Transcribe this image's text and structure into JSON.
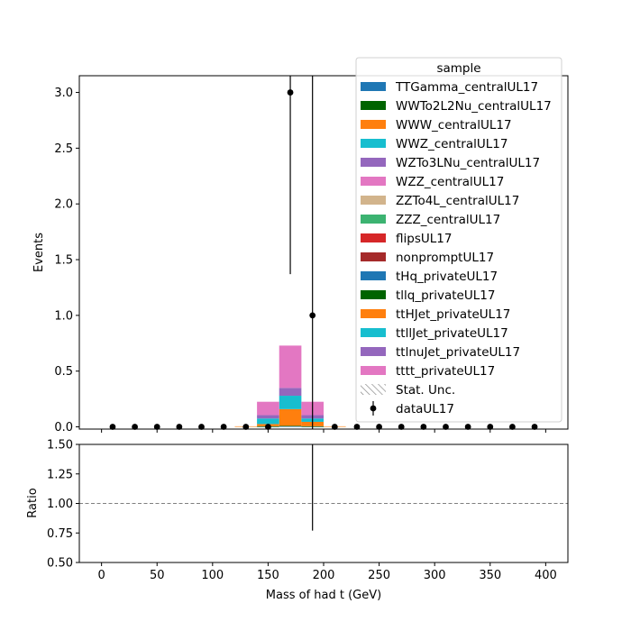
{
  "chart_data": {
    "type": "bar",
    "stacked": true,
    "x_edges": [
      0,
      20,
      40,
      60,
      80,
      100,
      120,
      140,
      160,
      180,
      200,
      220,
      240,
      260,
      280,
      300,
      320,
      340,
      360,
      380,
      400
    ],
    "xlabel": "Mass of had t (GeV)",
    "ylabel": "Events",
    "xlim": [
      -20,
      420
    ],
    "ylim": [
      -0.02,
      3.15
    ],
    "y_ticks": [
      "0.0",
      "0.5",
      "1.0",
      "1.5",
      "2.0",
      "2.5",
      "3.0"
    ],
    "x_ticks": [
      "0",
      "50",
      "100",
      "150",
      "200",
      "250",
      "300",
      "350",
      "400"
    ],
    "series": [
      {
        "name": "TTGamma_centralUL17",
        "color": "#1f77b4",
        "values": [
          0,
          0,
          0,
          0,
          0,
          0,
          0,
          0,
          0,
          0,
          0,
          0,
          0,
          0,
          0,
          0,
          0,
          0,
          0,
          0
        ]
      },
      {
        "name": "WWTo2L2Nu_centralUL17",
        "color": "#006400",
        "values": [
          0,
          0,
          0,
          0,
          0,
          0,
          0,
          0,
          0,
          0,
          0,
          0,
          0,
          0,
          0,
          0,
          0,
          0,
          0,
          0
        ]
      },
      {
        "name": "WWW_centralUL17",
        "color": "#ff7f0e",
        "values": [
          0,
          0,
          0,
          0,
          0,
          0,
          0,
          0,
          0,
          0,
          0,
          0,
          0,
          0,
          0,
          0,
          0,
          0,
          0,
          0
        ]
      },
      {
        "name": "WWZ_centralUL17",
        "color": "#17becf",
        "values": [
          0,
          0,
          0,
          0,
          0,
          0,
          0,
          0,
          0,
          0,
          0,
          0,
          0,
          0,
          0,
          0,
          0,
          0,
          0,
          0
        ]
      },
      {
        "name": "WZTo3LNu_centralUL17",
        "color": "#9467bd",
        "values": [
          0,
          0,
          0,
          0,
          0,
          0,
          0,
          0,
          0,
          0,
          0,
          0,
          0,
          0,
          0,
          0,
          0,
          0,
          0,
          0
        ]
      },
      {
        "name": "WZZ_centralUL17",
        "color": "#e377c2",
        "values": [
          0,
          0,
          0,
          0,
          0,
          0,
          0,
          0,
          0,
          0,
          0,
          0,
          0,
          0,
          0,
          0,
          0,
          0,
          0,
          0
        ]
      },
      {
        "name": "ZZTo4L_centralUL17",
        "color": "#d2b48c",
        "values": [
          0,
          0,
          0,
          0,
          0,
          0,
          0,
          0,
          0,
          0,
          0,
          0,
          0,
          0,
          0,
          0,
          0,
          0,
          0,
          0
        ]
      },
      {
        "name": "ZZZ_centralUL17",
        "color": "#3cb371",
        "values": [
          0,
          0,
          0,
          0,
          0,
          0,
          0,
          0,
          0,
          0,
          0,
          0,
          0,
          0,
          0,
          0,
          0,
          0,
          0,
          0
        ]
      },
      {
        "name": "flipsUL17",
        "color": "#d62728",
        "values": [
          0,
          0,
          0,
          0,
          0,
          0,
          0,
          0,
          0,
          0,
          0,
          0,
          0,
          0,
          0,
          0,
          0,
          0,
          0,
          0
        ]
      },
      {
        "name": "nonpromptUL17",
        "color": "#a52a2a",
        "values": [
          0,
          0,
          0,
          0,
          0,
          0,
          0,
          0,
          0,
          0,
          0,
          0,
          0,
          0,
          0,
          0,
          0,
          0,
          0,
          0
        ]
      },
      {
        "name": "tHq_privateUL17",
        "color": "#1f77b4",
        "values": [
          0,
          0,
          0,
          0,
          0,
          0,
          0,
          0.003,
          0.005,
          0.003,
          0,
          0,
          0,
          0,
          0,
          0,
          0,
          0,
          0,
          0
        ]
      },
      {
        "name": "tllq_privateUL17",
        "color": "#006400",
        "values": [
          0,
          0,
          0,
          0,
          0,
          0,
          0,
          0.002,
          0.004,
          0.002,
          0,
          0,
          0,
          0,
          0,
          0,
          0,
          0,
          0,
          0
        ]
      },
      {
        "name": "ttHJet_privateUL17",
        "color": "#ff7f0e",
        "values": [
          0,
          0,
          0,
          0,
          0,
          0,
          0.005,
          0.02,
          0.15,
          0.04,
          0.005,
          0,
          0,
          0,
          0,
          0,
          0,
          0,
          0,
          0
        ]
      },
      {
        "name": "ttllJet_privateUL17",
        "color": "#17becf",
        "values": [
          0,
          0,
          0,
          0,
          0,
          0,
          0,
          0.05,
          0.12,
          0.03,
          0,
          0,
          0,
          0,
          0,
          0,
          0,
          0,
          0,
          0
        ]
      },
      {
        "name": "ttlnuJet_privateUL17",
        "color": "#9467bd",
        "values": [
          0,
          0,
          0,
          0,
          0,
          0,
          0,
          0.03,
          0.07,
          0.03,
          0,
          0,
          0,
          0,
          0,
          0,
          0,
          0,
          0,
          0
        ]
      },
      {
        "name": "tttt_privateUL17",
        "color": "#e377c2",
        "values": [
          0,
          0,
          0,
          0,
          0,
          0,
          0,
          0.12,
          0.38,
          0.12,
          0,
          0,
          0,
          0,
          0,
          0,
          0,
          0,
          0,
          0
        ]
      }
    ],
    "data": {
      "name": "dataUL17",
      "x": [
        10,
        30,
        50,
        70,
        90,
        110,
        130,
        150,
        170,
        190,
        210,
        230,
        250,
        270,
        290,
        310,
        330,
        350,
        370,
        390
      ],
      "y": [
        0,
        0,
        0,
        0,
        0,
        0,
        0,
        0,
        3,
        1,
        0,
        0,
        0,
        0,
        0,
        0,
        0,
        0,
        0,
        0
      ],
      "err": [
        0,
        0,
        0,
        0,
        0,
        0,
        0,
        0,
        1.63,
        2.3,
        0,
        0,
        0,
        0,
        0,
        0,
        0,
        0,
        0,
        0
      ]
    },
    "stat_unc_label": "Stat. Unc.",
    "legend": {
      "title": "sample",
      "placement": "top-right"
    },
    "ratio_panel": {
      "ylabel": "Ratio",
      "ylim": [
        0.5,
        1.5
      ],
      "y_ticks": [
        "0.50",
        "0.75",
        "1.00",
        "1.25",
        "1.50"
      ],
      "reference_line": 1.0,
      "error_bars": [
        {
          "x": 190,
          "low": 0.77,
          "high": 1.5
        }
      ]
    }
  }
}
